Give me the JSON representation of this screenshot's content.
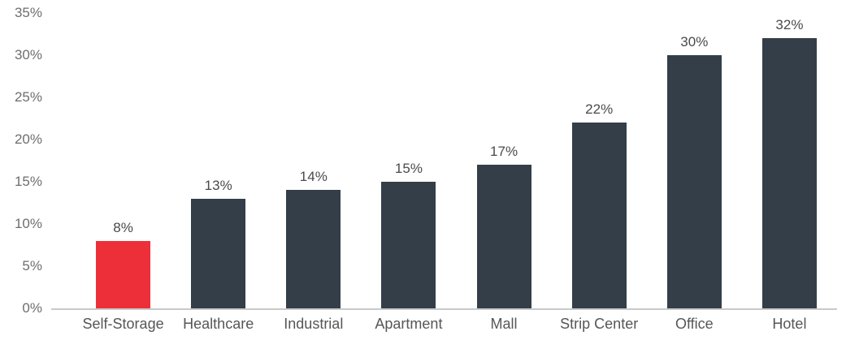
{
  "chart_data": {
    "type": "bar",
    "title": "",
    "xlabel": "",
    "ylabel": "",
    "categories": [
      "Self-Storage",
      "Healthcare",
      "Industrial",
      "Apartment",
      "Mall",
      "Strip Center",
      "Office",
      "Hotel"
    ],
    "values": [
      8,
      13,
      14,
      15,
      17,
      22,
      30,
      32
    ],
    "data_labels": [
      "8%",
      "13%",
      "14%",
      "15%",
      "17%",
      "22%",
      "30%",
      "32%"
    ],
    "y_tick_values": [
      0,
      5,
      10,
      15,
      20,
      25,
      30,
      35
    ],
    "y_tick_labels": [
      "0%",
      "5%",
      "10%",
      "15%",
      "20%",
      "25%",
      "30%",
      "35%"
    ],
    "ylim": [
      0,
      35
    ],
    "grid": false,
    "legend": false,
    "highlight_index": 0,
    "colors": {
      "highlight_bar": "#ED2F3A",
      "default_bar": "#333E48",
      "axis_line": "#C9C9C9",
      "y_tick_text": "#6E6E6E",
      "value_label_text": "#4A4A4A",
      "category_text": "#565656",
      "background": "#FFFFFF"
    }
  }
}
